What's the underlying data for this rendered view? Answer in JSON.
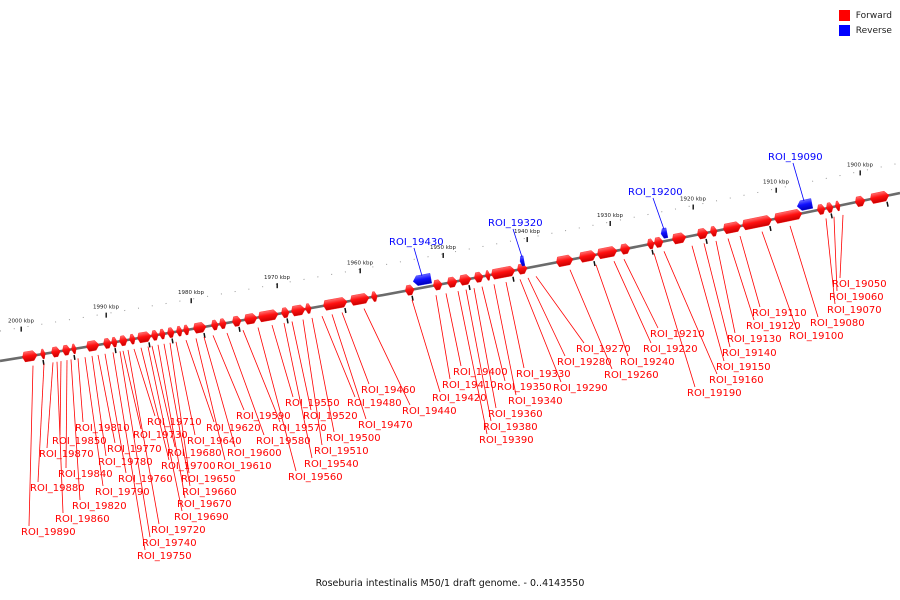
{
  "legend": {
    "forward_label": "Forward",
    "reverse_label": "Reverse",
    "forward_color": "#ff0000",
    "reverse_color": "#0000ff"
  },
  "caption": "Roseburia intestinalis M50/1 draft genome. - 0..4143550",
  "scale_labels": [
    "1900 kbp",
    "1910 kbp",
    "1920 kbp",
    "1930 kbp",
    "1940 kbp",
    "1950 kbp",
    "1960 kbp",
    "1970 kbp",
    "1980 kbp",
    "1990 kbp",
    "2000 kbp"
  ],
  "labels_forward": [
    "ROI_19890",
    "ROI_19880",
    "ROI_19870",
    "ROI_19860",
    "ROI_19850",
    "ROI_19840",
    "ROI_19820",
    "ROI_19810",
    "ROI_19790",
    "ROI_19780",
    "ROI_19770",
    "ROI_19760",
    "ROI_19750",
    "ROI_19740",
    "ROI_19730",
    "ROI_19720",
    "ROI_19710",
    "ROI_19700",
    "ROI_19690",
    "ROI_19680",
    "ROI_19670",
    "ROI_19660",
    "ROI_19650",
    "ROI_19640",
    "ROI_19620",
    "ROI_19610",
    "ROI_19600",
    "ROI_19590",
    "ROI_19580",
    "ROI_19570",
    "ROI_19560",
    "ROI_19550",
    "ROI_19540",
    "ROI_19520",
    "ROI_19510",
    "ROI_19500",
    "ROI_19480",
    "ROI_19470",
    "ROI_19460",
    "ROI_19440",
    "ROI_19420",
    "ROI_19410",
    "ROI_19400",
    "ROI_19390",
    "ROI_19380",
    "ROI_19360",
    "ROI_19350",
    "ROI_19340",
    "ROI_19330",
    "ROI_19290",
    "ROI_19280",
    "ROI_19270",
    "ROI_19260",
    "ROI_19240",
    "ROI_19220",
    "ROI_19210",
    "ROI_19190",
    "ROI_19160",
    "ROI_19150",
    "ROI_19140",
    "ROI_19130",
    "ROI_19120",
    "ROI_19110",
    "ROI_19100",
    "ROI_19080",
    "ROI_19070",
    "ROI_19060",
    "ROI_19050"
  ],
  "labels_reverse": [
    "ROI_19430",
    "ROI_19320",
    "ROI_19200",
    "ROI_19090"
  ]
}
